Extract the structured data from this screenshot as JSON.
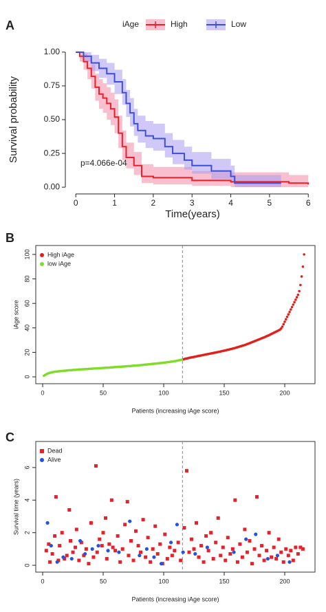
{
  "chart_data": [
    {
      "type": "km",
      "label": "A",
      "legend_title": "iAge",
      "x_label": "Time(years)",
      "y_label": "Survival probability",
      "annotation": "p=4.066e-04",
      "xlim": [
        -0.27,
        6.12
      ],
      "ylim": [
        -0.05,
        1.05
      ],
      "xticks": [
        0,
        1,
        2,
        3,
        4,
        5,
        6
      ],
      "yticks": [
        {
          "value": 0,
          "label": "0.00"
        },
        {
          "value": 0.25,
          "label": "0.25"
        },
        {
          "value": 0.5,
          "label": "0.50"
        },
        {
          "value": 0.75,
          "label": "0.75"
        },
        {
          "value": 1,
          "label": "1.00"
        }
      ],
      "series": [
        {
          "name": "High",
          "color": "#e8202a",
          "band_color": "#f48aa6",
          "x": [
            0,
            0.1,
            0.2,
            0.3,
            0.4,
            0.5,
            0.6,
            0.7,
            0.8,
            0.9,
            1.0,
            1.1,
            1.2,
            1.3,
            1.5,
            1.7,
            2.0,
            2.5,
            3.0,
            4.0,
            5.0,
            5.5,
            6.0
          ],
          "values": [
            1,
            0.97,
            0.93,
            0.88,
            0.82,
            0.74,
            0.69,
            0.66,
            0.62,
            0.58,
            0.52,
            0.4,
            0.3,
            0.22,
            0.16,
            0.08,
            0.07,
            0.07,
            0.05,
            0.04,
            0.04,
            0.03,
            0.02
          ],
          "lower": [
            1,
            0.93,
            0.87,
            0.8,
            0.73,
            0.64,
            0.58,
            0.55,
            0.5,
            0.46,
            0.4,
            0.29,
            0.2,
            0.14,
            0.09,
            0.03,
            0.02,
            0.02,
            0.01,
            0.0,
            0.0,
            0.0,
            0.0
          ],
          "upper": [
            1,
            1,
            0.99,
            0.96,
            0.91,
            0.84,
            0.8,
            0.77,
            0.74,
            0.7,
            0.65,
            0.53,
            0.42,
            0.33,
            0.26,
            0.17,
            0.15,
            0.15,
            0.12,
            0.11,
            0.11,
            0.09,
            0.08
          ]
        },
        {
          "name": "Low",
          "color": "#3a4fd8",
          "band_color": "#a99cf2",
          "x": [
            0,
            0.2,
            0.4,
            0.6,
            0.8,
            1.0,
            1.2,
            1.3,
            1.4,
            1.5,
            1.6,
            1.8,
            2.0,
            2.3,
            2.5,
            2.8,
            3.0,
            3.5,
            4.0,
            4.1,
            5.3
          ],
          "values": [
            1,
            0.97,
            0.92,
            0.88,
            0.84,
            0.78,
            0.7,
            0.62,
            0.55,
            0.47,
            0.42,
            0.38,
            0.36,
            0.3,
            0.25,
            0.2,
            0.16,
            0.12,
            0.08,
            0.03,
            0.03
          ],
          "lower": [
            1,
            0.93,
            0.86,
            0.81,
            0.76,
            0.69,
            0.61,
            0.52,
            0.45,
            0.38,
            0.33,
            0.29,
            0.27,
            0.22,
            0.17,
            0.13,
            0.1,
            0.06,
            0.03,
            0.0,
            0.0
          ],
          "upper": [
            1,
            1,
            0.98,
            0.95,
            0.92,
            0.87,
            0.8,
            0.72,
            0.66,
            0.58,
            0.53,
            0.49,
            0.47,
            0.4,
            0.35,
            0.3,
            0.26,
            0.21,
            0.16,
            0.09,
            0.09
          ]
        }
      ]
    },
    {
      "type": "scatter",
      "label": "B",
      "x_label": "Patients (increasing iAge score)",
      "y_label": "iAge score",
      "legend_corner": "top-left",
      "xlim": [
        -5.7,
        225
      ],
      "ylim": [
        -5.6,
        107.3
      ],
      "xticks": [
        0,
        50,
        100,
        150,
        200
      ],
      "yticks": [
        0,
        20,
        40,
        60,
        80,
        100
      ],
      "vline": 115.5,
      "series": [
        {
          "name": "High iAge",
          "color": "#e0201b",
          "marker": "circle",
          "x": [
            116,
            117,
            118,
            119,
            120,
            121,
            122,
            123,
            124,
            125,
            126,
            127,
            128,
            129,
            130,
            131,
            132,
            133,
            134,
            135,
            136,
            137,
            138,
            139,
            140,
            141,
            142,
            143,
            144,
            145,
            146,
            147,
            148,
            149,
            150,
            151,
            152,
            153,
            154,
            155,
            156,
            157,
            158,
            159,
            160,
            161,
            162,
            163,
            164,
            165,
            166,
            167,
            168,
            169,
            170,
            171,
            172,
            173,
            174,
            175,
            176,
            177,
            178,
            179,
            180,
            181,
            182,
            183,
            184,
            185,
            186,
            187,
            188,
            189,
            190,
            191,
            192,
            193,
            194,
            195,
            196,
            197,
            198,
            199,
            200,
            201,
            202,
            203,
            204,
            205,
            206,
            207,
            208,
            209,
            210,
            211,
            212,
            213,
            214,
            215,
            216
          ],
          "values": [
            14.2,
            14.5,
            14.8,
            15.0,
            15.2,
            15.5,
            15.7,
            15.9,
            16.1,
            16.3,
            16.5,
            16.7,
            16.9,
            17.1,
            17.3,
            17.5,
            17.7,
            17.9,
            18.1,
            18.3,
            18.5,
            18.7,
            18.9,
            19.1,
            19.3,
            19.5,
            19.7,
            19.9,
            20.1,
            20.3,
            20.5,
            20.7,
            21.0,
            21.2,
            21.4,
            21.6,
            21.9,
            22.1,
            22.3,
            22.6,
            22.8,
            23.1,
            23.3,
            23.6,
            23.9,
            24.2,
            24.5,
            24.8,
            25.1,
            25.4,
            25.7,
            26.0,
            26.4,
            26.8,
            27.1,
            27.5,
            27.9,
            28.3,
            28.7,
            29.1,
            29.5,
            29.9,
            30.3,
            30.7,
            31.1,
            31.5,
            31.9,
            32.3,
            32.7,
            33.2,
            33.6,
            34.0,
            34.5,
            35.0,
            35.5,
            36.0,
            36.5,
            37.0,
            37.5,
            38.0,
            38.5,
            39.5,
            41,
            43,
            45,
            47,
            49,
            51,
            53,
            55,
            57,
            59,
            61,
            63,
            65,
            67,
            70,
            75,
            82,
            90,
            100
          ]
        },
        {
          "name": "low iAge",
          "color": "#7fdd2a",
          "marker": "circle",
          "x": [
            1,
            2,
            3,
            4,
            5,
            6,
            7,
            8,
            9,
            10,
            11,
            12,
            13,
            14,
            15,
            16,
            17,
            18,
            19,
            20,
            21,
            22,
            23,
            24,
            25,
            26,
            27,
            28,
            29,
            30,
            31,
            32,
            33,
            34,
            35,
            36,
            37,
            38,
            39,
            40,
            41,
            42,
            43,
            44,
            45,
            46,
            47,
            48,
            49,
            50,
            51,
            52,
            53,
            54,
            55,
            56,
            57,
            58,
            59,
            60,
            61,
            62,
            63,
            64,
            65,
            66,
            67,
            68,
            69,
            70,
            71,
            72,
            73,
            74,
            75,
            76,
            77,
            78,
            79,
            80,
            81,
            82,
            83,
            84,
            85,
            86,
            87,
            88,
            89,
            90,
            91,
            92,
            93,
            94,
            95,
            96,
            97,
            98,
            99,
            100,
            101,
            102,
            103,
            104,
            105,
            106,
            107,
            108,
            109,
            110,
            111,
            112,
            113,
            114,
            115
          ],
          "values": [
            0.8,
            1.5,
            2.1,
            2.6,
            3.0,
            3.3,
            3.6,
            3.8,
            4.0,
            4.2,
            4.3,
            4.4,
            4.5,
            4.6,
            4.7,
            4.8,
            4.9,
            5.0,
            5.1,
            5.2,
            5.3,
            5.4,
            5.4,
            5.5,
            5.6,
            5.7,
            5.7,
            5.8,
            5.9,
            6.0,
            6.0,
            6.1,
            6.2,
            6.2,
            6.3,
            6.4,
            6.4,
            6.5,
            6.6,
            6.6,
            6.7,
            6.8,
            6.8,
            6.9,
            7.0,
            7.0,
            7.1,
            7.1,
            7.2,
            7.3,
            7.3,
            7.4,
            7.5,
            7.5,
            7.6,
            7.7,
            7.7,
            7.8,
            7.9,
            8.0,
            8.0,
            8.1,
            8.2,
            8.2,
            8.3,
            8.4,
            8.5,
            8.5,
            8.6,
            8.7,
            8.8,
            8.8,
            8.9,
            9.0,
            9.1,
            9.2,
            9.2,
            9.3,
            9.4,
            9.5,
            9.6,
            9.7,
            9.8,
            9.9,
            10.0,
            10.1,
            10.2,
            10.3,
            10.4,
            10.5,
            10.6,
            10.7,
            10.8,
            10.9,
            11.0,
            11.1,
            11.2,
            11.3,
            11.4,
            11.6,
            11.7,
            11.8,
            12.0,
            12.1,
            12.2,
            12.4,
            12.5,
            12.7,
            12.8,
            13.0,
            13.2,
            13.4,
            13.6,
            13.8,
            14.0
          ]
        }
      ]
    },
    {
      "type": "scatter",
      "label": "C",
      "x_label": "Patients (increasing iAge score)",
      "y_label": "Survival time (years)",
      "legend_corner": "top-left",
      "xlim": [
        -5.7,
        225
      ],
      "ylim": [
        -0.42,
        7.6
      ],
      "xticks": [
        0,
        50,
        100,
        150,
        200
      ],
      "yticks": [
        0,
        2,
        4,
        6
      ],
      "vline": 115.5,
      "series": [
        {
          "name": "Dead",
          "color": "#e8202a",
          "marker": "square",
          "x": [
            3,
            5,
            6,
            8,
            10,
            11,
            13,
            14,
            16,
            18,
            20,
            22,
            23,
            25,
            27,
            28,
            30,
            32,
            34,
            36,
            38,
            40,
            42,
            44,
            45,
            47,
            49,
            50,
            52,
            53,
            55,
            57,
            58,
            60,
            62,
            64,
            66,
            68,
            70,
            71,
            73,
            75,
            77,
            79,
            81,
            83,
            85,
            87,
            89,
            91,
            93,
            95,
            97,
            99,
            101,
            103,
            105,
            107,
            109,
            112,
            114,
            117,
            119,
            121,
            123,
            125,
            127,
            129,
            131,
            133,
            135,
            137,
            139,
            141,
            143,
            145,
            147,
            149,
            151,
            153,
            155,
            157,
            159,
            161,
            163,
            165,
            167,
            169,
            171,
            173,
            175,
            177,
            179,
            181,
            183,
            185,
            187,
            189,
            191,
            193,
            195,
            197,
            199,
            201,
            203,
            205,
            207,
            209,
            211,
            213,
            215
          ],
          "values": [
            0.9,
            1.3,
            0.2,
            0.7,
            1.8,
            4.2,
            0.3,
            1.2,
            2.0,
            0.4,
            0.6,
            3.4,
            1.5,
            0.8,
            1.1,
            2.2,
            0.3,
            1.4,
            0.6,
            1.0,
            0.1,
            2.6,
            0.5,
            6.1,
            0.8,
            1.6,
            1.2,
            2.0,
            2.9,
            0.4,
            1.3,
            4.0,
            1.1,
            0.9,
            1.8,
            0.2,
            1.0,
            2.5,
            3.9,
            0.6,
            1.5,
            0.3,
            2.1,
            1.2,
            0.8,
            2.8,
            0.5,
            1.7,
            0.2,
            1.0,
            2.4,
            0.7,
            1.3,
            0.1,
            1.9,
            0.4,
            1.1,
            0.6,
            0.9,
            1.4,
            0.3,
            2.3,
            5.8,
            0.8,
            1.6,
            1.0,
            2.6,
            0.5,
            1.2,
            0.2,
            1.8,
            0.9,
            2.0,
            0.4,
            1.4,
            2.9,
            0.6,
            1.1,
            0.3,
            1.7,
            0.7,
            1.0,
            4.0,
            0.2,
            1.3,
            0.5,
            2.2,
            0.8,
            1.5,
            0.1,
            1.0,
            4.2,
            0.6,
            1.2,
            0.3,
            0.9,
            2.0,
            0.5,
            1.1,
            0.4,
            1.6,
            0.8,
            0.2,
            1.0,
            0.6,
            0.9,
            0.3,
            1.1,
            0.7,
            1.1,
            1.0
          ]
        },
        {
          "name": "Alive",
          "color": "#2255dd",
          "marker": "circle",
          "x": [
            4,
            7,
            12,
            17,
            24,
            31,
            35,
            41,
            46,
            54,
            63,
            72,
            80,
            86,
            92,
            98,
            106,
            111,
            116,
            126,
            136,
            158,
            168,
            176,
            186,
            194,
            204
          ],
          "values": [
            2.6,
            1.2,
            0.2,
            0.5,
            0.4,
            1.5,
            0.7,
            1.0,
            1.2,
            0.9,
            0.8,
            2.7,
            0.6,
            1.0,
            0.5,
            0.1,
            1.4,
            2.5,
            0.8,
            0.7,
            1.1,
            0.8,
            1.6,
            1.9,
            0.4,
            0.6,
            0.2
          ]
        }
      ]
    }
  ]
}
